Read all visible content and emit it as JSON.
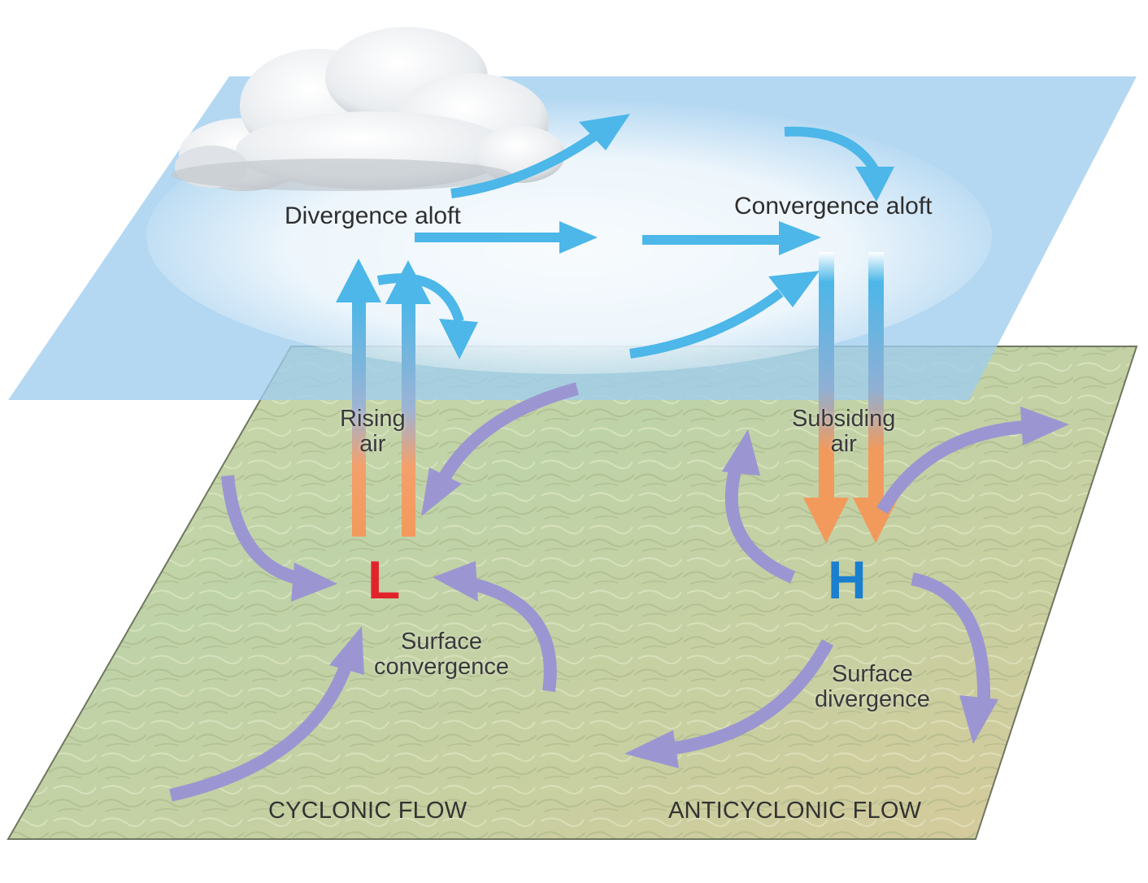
{
  "upper_level": {
    "divergence_label": "Divergence aloft",
    "convergence_label": "Convergence aloft"
  },
  "vertical_motion": {
    "rising": [
      "Rising",
      "air"
    ],
    "subsiding": [
      "Subsiding",
      "air"
    ]
  },
  "surface": {
    "low_symbol": "L",
    "high_symbol": "H",
    "convergence": [
      "Surface",
      "convergence"
    ],
    "divergence": [
      "Surface",
      "divergence"
    ]
  },
  "flow_labels": {
    "cyclonic": "CYCLONIC FLOW",
    "anticyclonic": "ANTICYCLONIC FLOW"
  },
  "colors": {
    "upper_arrow": "#4cb7e8",
    "surface_arrow": "#9b96d2",
    "warm_arrow": "#f29a5c",
    "low": "#e1232b",
    "high": "#1a7fce",
    "sky_plane": "#a9d3ef",
    "ground": "#c4cf9f"
  }
}
